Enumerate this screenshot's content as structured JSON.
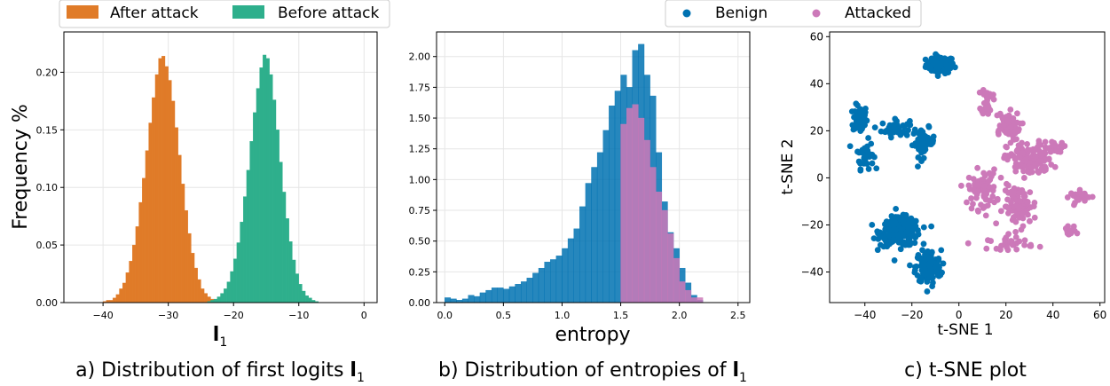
{
  "colors": {
    "after_attack": "#e07b28",
    "before_attack": "#2eaf8c",
    "benign": "#0072b2",
    "attacked": "#cc79b9",
    "grid": "#e6e6e6"
  },
  "chart_data": [
    {
      "type": "bar",
      "caption": "a) Distribution of first logits",
      "caption_symbol": "l",
      "caption_subscript": "1",
      "xlabel_symbol": "l",
      "xlabel_subscript": "1",
      "ylabel": "Frequency %",
      "xlim": [
        -46,
        2
      ],
      "ylim": [
        0,
        0.235
      ],
      "xticks": [
        -40,
        -30,
        -20,
        -10,
        0
      ],
      "xtick_labels": [
        "−40",
        "−30",
        "−20",
        "−10",
        "0"
      ],
      "yticks": [
        0,
        0.05,
        0.1,
        0.15,
        0.2
      ],
      "ytick_labels": [
        "0.00",
        "0.05",
        "0.10",
        "0.15",
        "0.20"
      ],
      "grid": true,
      "legend": {
        "placement": "top-left, above plot",
        "entries": [
          "After attack",
          "Before attack"
        ]
      },
      "bin_width": 0.5,
      "series": [
        {
          "name": "After attack",
          "bin_start": -40,
          "values": [
            0.001,
            0.002,
            0.002,
            0.004,
            0.007,
            0.012,
            0.017,
            0.026,
            0.036,
            0.05,
            0.066,
            0.087,
            0.108,
            0.132,
            0.156,
            0.178,
            0.198,
            0.212,
            0.214,
            0.205,
            0.193,
            0.175,
            0.152,
            0.128,
            0.103,
            0.08,
            0.06,
            0.043,
            0.03,
            0.02,
            0.012,
            0.008,
            0.005,
            0.003,
            0.002,
            0.001
          ]
        },
        {
          "name": "Before attack",
          "bin_start": -24,
          "values": [
            0.001,
            0.002,
            0.003,
            0.005,
            0.008,
            0.012,
            0.018,
            0.027,
            0.038,
            0.052,
            0.07,
            0.092,
            0.115,
            0.14,
            0.165,
            0.186,
            0.204,
            0.215,
            0.212,
            0.198,
            0.176,
            0.15,
            0.122,
            0.096,
            0.073,
            0.053,
            0.037,
            0.025,
            0.016,
            0.01,
            0.006,
            0.004,
            0.002,
            0.001
          ]
        }
      ]
    },
    {
      "type": "bar",
      "caption": "b) Distribution of entropies of",
      "caption_symbol": "l",
      "caption_subscript": "1",
      "xlabel": "entropy",
      "xlim": [
        -0.07,
        2.6
      ],
      "ylim": [
        0,
        2.2
      ],
      "xticks": [
        0,
        0.5,
        1,
        1.5,
        2,
        2.5
      ],
      "xtick_labels": [
        "0.0",
        "0.5",
        "1.0",
        "1.5",
        "2.0",
        "2.5"
      ],
      "yticks": [
        0,
        0.25,
        0.5,
        0.75,
        1,
        1.25,
        1.5,
        1.75,
        2
      ],
      "ytick_labels": [
        "0.00",
        "0.25",
        "0.50",
        "0.75",
        "1.00",
        "1.25",
        "1.50",
        "1.75",
        "2.00"
      ],
      "grid": true,
      "legend": {
        "placement": "top-right, above plot",
        "entries": [
          "Benign",
          "Attacked"
        ]
      },
      "bin_width": 0.05,
      "series": [
        {
          "name": "Benign",
          "bin_start": 0,
          "values": [
            0.04,
            0.03,
            0.02,
            0.03,
            0.06,
            0.05,
            0.08,
            0.1,
            0.12,
            0.12,
            0.11,
            0.13,
            0.15,
            0.17,
            0.2,
            0.24,
            0.28,
            0.33,
            0.35,
            0.38,
            0.44,
            0.52,
            0.6,
            0.78,
            0.97,
            1.1,
            1.22,
            1.4,
            1.6,
            1.72,
            1.85,
            1.75,
            2.05,
            2.1,
            1.85,
            1.68,
            1.22,
            0.82,
            0.57,
            0.44,
            0.28,
            0.16,
            0.06,
            0.02
          ]
        },
        {
          "name": "Attacked",
          "bin_start": 1.5,
          "values": [
            1.45,
            1.58,
            1.61,
            1.5,
            1.32,
            1.1,
            0.9,
            0.75,
            0.56,
            0.36,
            0.17,
            0.1,
            0.04,
            0.04
          ]
        }
      ]
    },
    {
      "type": "scatter",
      "caption": "c) t-SNE plot",
      "xlabel": "t-SNE 1",
      "ylabel": "t-SNE 2",
      "xlim": [
        -55,
        62
      ],
      "ylim": [
        -53,
        62
      ],
      "xticks": [
        -40,
        -20,
        0,
        20,
        40,
        60
      ],
      "xtick_labels": [
        "−40",
        "−20",
        "0",
        "20",
        "40",
        "60"
      ],
      "yticks": [
        -40,
        -20,
        0,
        20,
        40,
        60
      ],
      "ytick_labels": [
        "−40",
        "−20",
        "0",
        "20",
        "40",
        "60"
      ],
      "grid": false,
      "series": [
        {
          "name": "Benign",
          "clusters": [
            {
              "cx": -8,
              "cy": 48,
              "sx": 5,
              "sy": 3,
              "n": 90
            },
            {
              "cx": -42,
              "cy": 25,
              "sx": 2.5,
              "sy": 5,
              "n": 70
            },
            {
              "cx": -40,
              "cy": 10,
              "sx": 3,
              "sy": 5,
              "n": 40
            },
            {
              "cx": -27,
              "cy": 21,
              "sx": 5,
              "sy": 3,
              "n": 45
            },
            {
              "cx": -15,
              "cy": 15,
              "sx": 4,
              "sy": 5,
              "n": 50
            },
            {
              "cx": -25,
              "cy": -23,
              "sx": 7,
              "sy": 5,
              "n": 250
            },
            {
              "cx": -13,
              "cy": -38,
              "sx": 4.5,
              "sy": 6,
              "n": 150
            }
          ]
        },
        {
          "name": "Attacked",
          "clusters": [
            {
              "cx": 12,
              "cy": 33,
              "sx": 2,
              "sy": 5,
              "n": 30
            },
            {
              "cx": 20,
              "cy": 22,
              "sx": 5,
              "sy": 5,
              "n": 60
            },
            {
              "cx": 30,
              "cy": 8,
              "sx": 8,
              "sy": 6,
              "n": 130
            },
            {
              "cx": 10,
              "cy": -5,
              "sx": 5,
              "sy": 7,
              "n": 70
            },
            {
              "cx": 26,
              "cy": -12,
              "sx": 6,
              "sy": 7,
              "n": 90
            },
            {
              "cx": 22,
              "cy": -28,
              "sx": 8,
              "sy": 2,
              "n": 30
            },
            {
              "cx": 41,
              "cy": 13,
              "sx": 4,
              "sy": 2,
              "n": 20
            },
            {
              "cx": 52,
              "cy": -8,
              "sx": 4,
              "sy": 2,
              "n": 25
            },
            {
              "cx": 47,
              "cy": -23,
              "sx": 2,
              "sy": 3,
              "n": 15
            }
          ]
        }
      ]
    }
  ]
}
